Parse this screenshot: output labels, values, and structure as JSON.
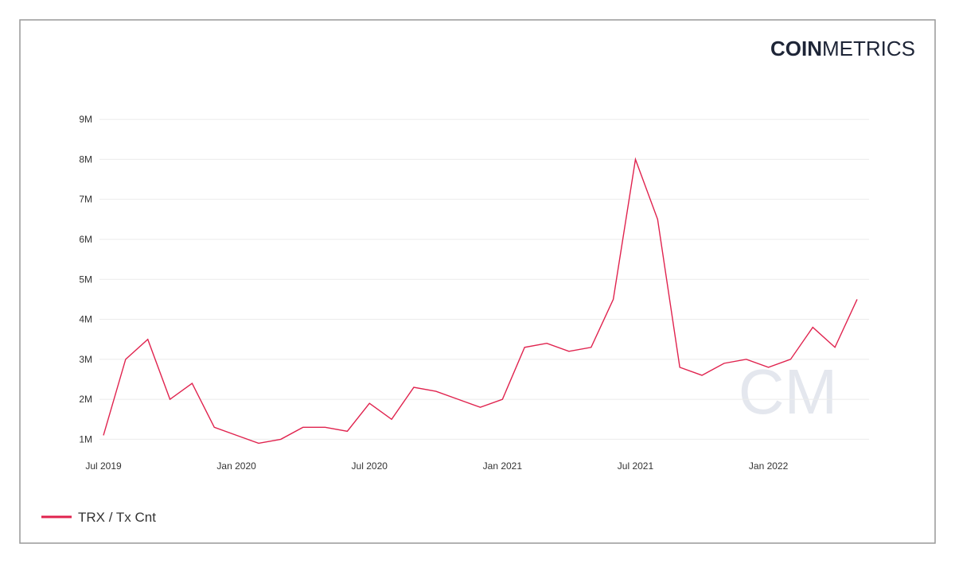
{
  "logo": {
    "bold": "COIN",
    "light": "METRICS"
  },
  "watermark": "CM",
  "chart_data": {
    "type": "line",
    "x": [
      "2019-07",
      "2019-08",
      "2019-09",
      "2019-10",
      "2019-11",
      "2019-12",
      "2020-01",
      "2020-02",
      "2020-03",
      "2020-04",
      "2020-05",
      "2020-06",
      "2020-07",
      "2020-08",
      "2020-09",
      "2020-10",
      "2020-11",
      "2020-12",
      "2021-01",
      "2021-02",
      "2021-03",
      "2021-04",
      "2021-05",
      "2021-06",
      "2021-07",
      "2021-08",
      "2021-09",
      "2021-10",
      "2021-11",
      "2021-12",
      "2022-01",
      "2022-02",
      "2022-03",
      "2022-04",
      "2022-05"
    ],
    "series": [
      {
        "name": "TRX / Tx Cnt",
        "color": "#e0234e",
        "values": [
          1100000,
          3000000,
          3500000,
          2000000,
          2400000,
          1300000,
          1100000,
          900000,
          1000000,
          1300000,
          1300000,
          1200000,
          1900000,
          1500000,
          2300000,
          2200000,
          2000000,
          1800000,
          2000000,
          3300000,
          3400000,
          3200000,
          3300000,
          4500000,
          8000000,
          6500000,
          2800000,
          2600000,
          2900000,
          3000000,
          2800000,
          3000000,
          3800000,
          3300000,
          4500000
        ]
      }
    ],
    "xlim": [
      "2019-07",
      "2022-05"
    ],
    "xticks": [
      {
        "value": "2019-07",
        "label": "Jul 2019"
      },
      {
        "value": "2020-01",
        "label": "Jan 2020"
      },
      {
        "value": "2020-07",
        "label": "Jul 2020"
      },
      {
        "value": "2021-01",
        "label": "Jan 2021"
      },
      {
        "value": "2021-07",
        "label": "Jul 2021"
      },
      {
        "value": "2022-01",
        "label": "Jan 2022"
      }
    ],
    "ylim": [
      750000,
      9300000
    ],
    "yticks": [
      {
        "value": 1000000,
        "label": "1M"
      },
      {
        "value": 2000000,
        "label": "2M"
      },
      {
        "value": 3000000,
        "label": "3M"
      },
      {
        "value": 4000000,
        "label": "4M"
      },
      {
        "value": 5000000,
        "label": "5M"
      },
      {
        "value": 6000000,
        "label": "6M"
      },
      {
        "value": 7000000,
        "label": "7M"
      },
      {
        "value": 8000000,
        "label": "8M"
      },
      {
        "value": 9000000,
        "label": "9M"
      }
    ],
    "grid": true
  }
}
